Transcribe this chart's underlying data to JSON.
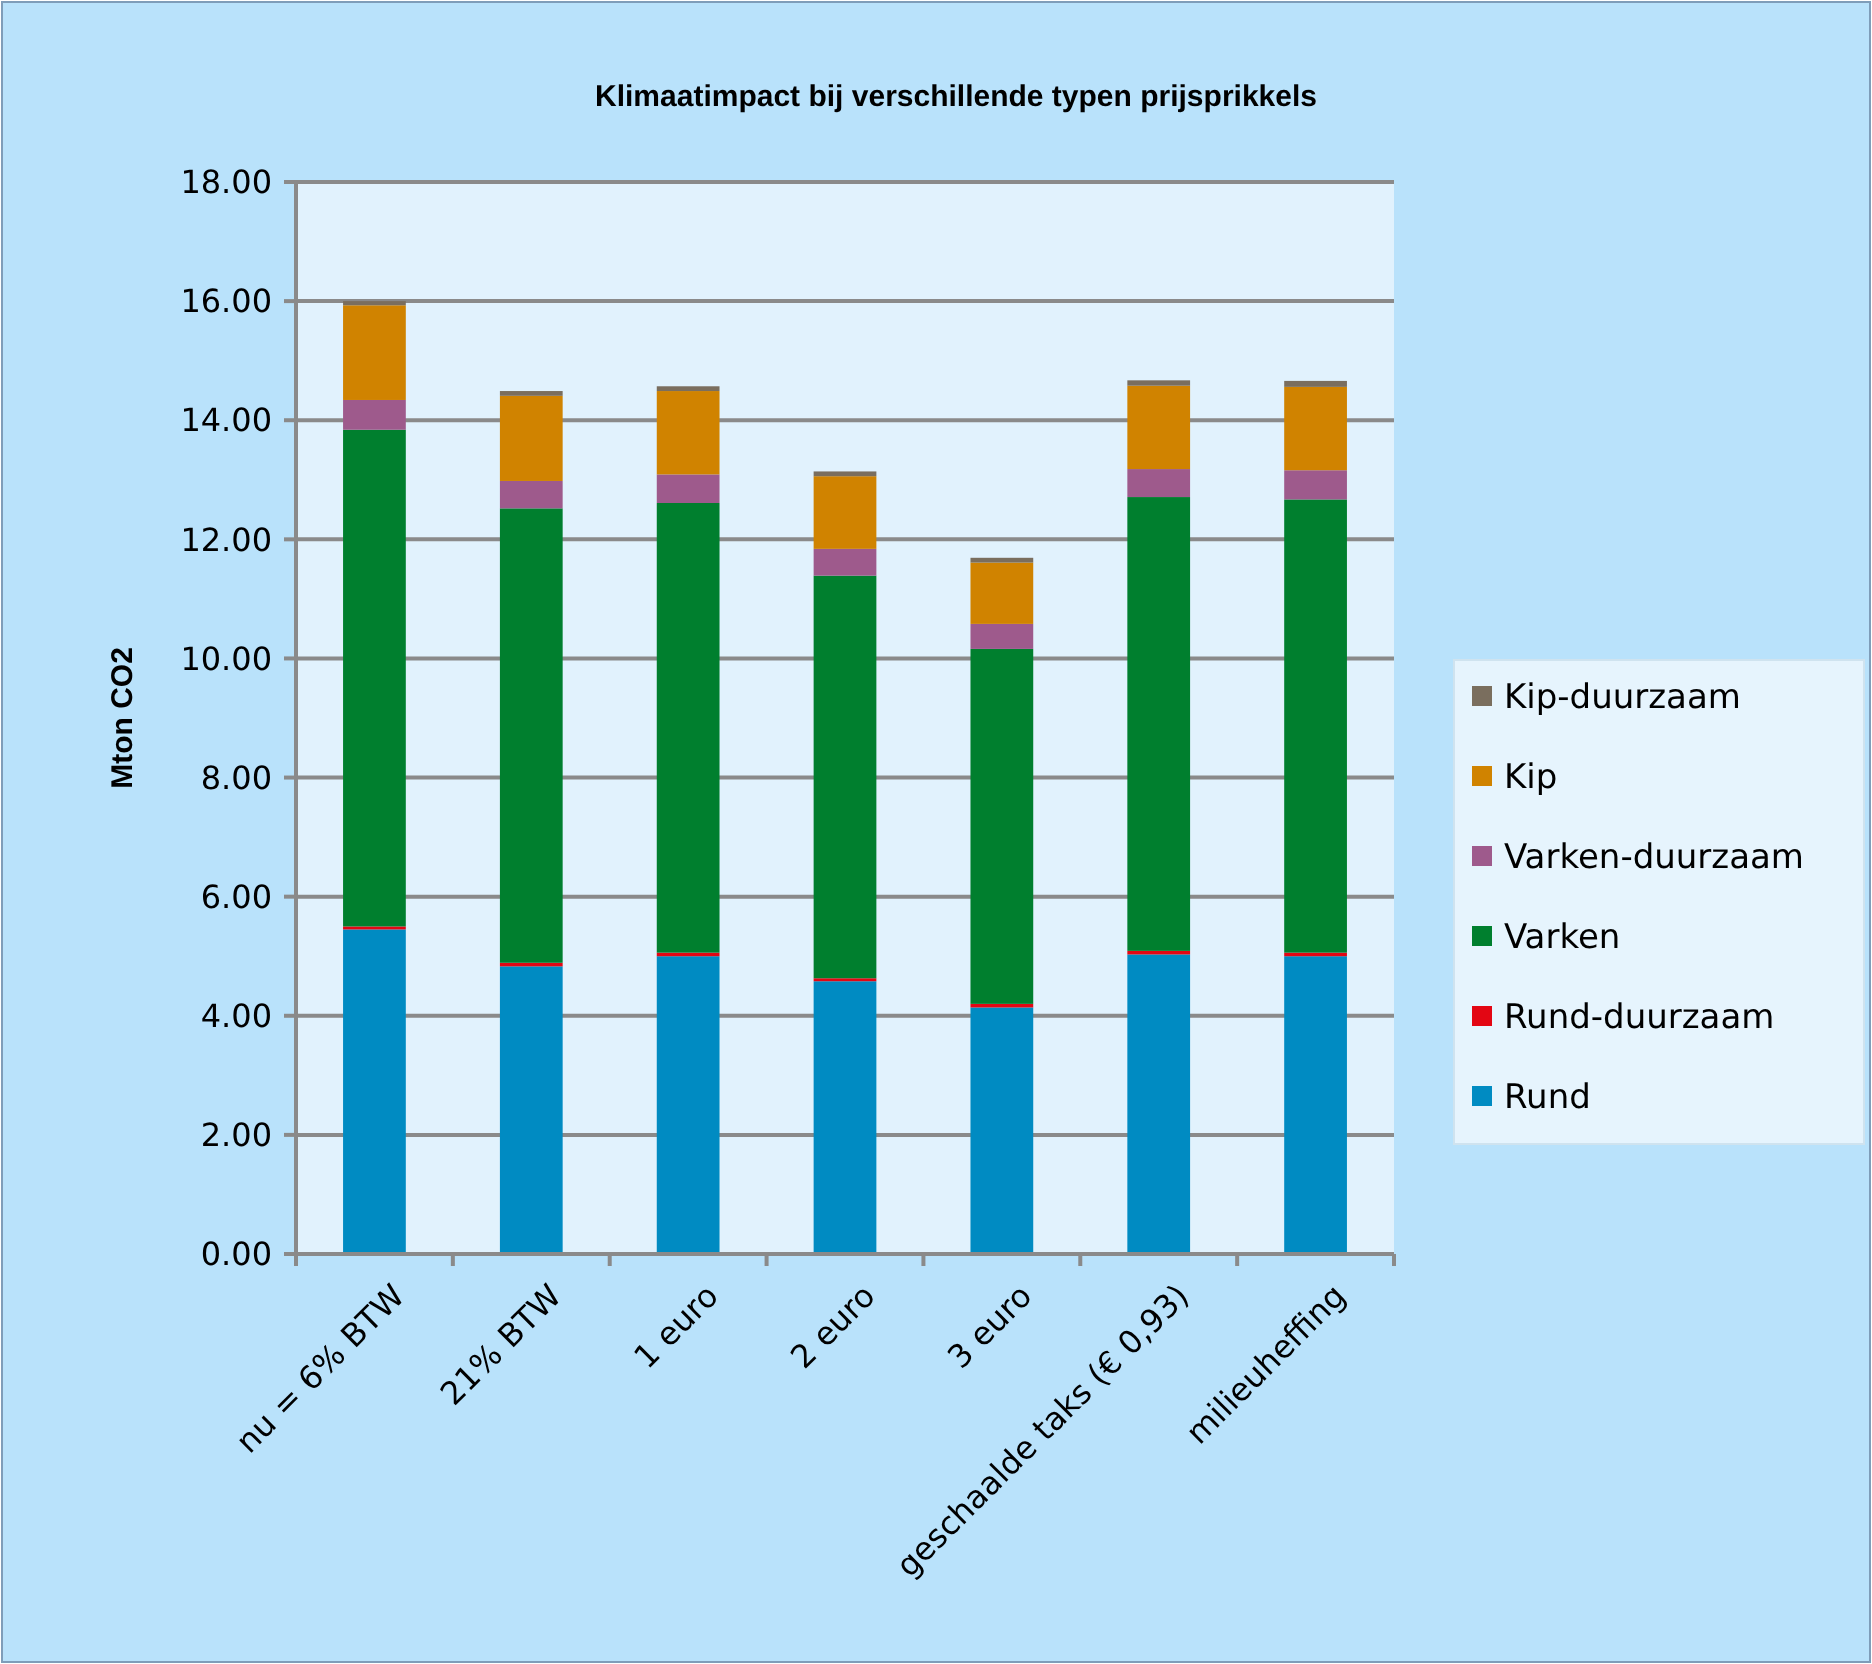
{
  "chart_data": {
    "type": "bar",
    "stacked": true,
    "title": "Klimaatimpact bij verschillende typen prijsprikkels",
    "ylabel": "Mton CO2",
    "categories": [
      "nu = 6% BTW",
      "21% BTW",
      "1 euro",
      "2 euro",
      "3 euro",
      "geschaalde taks (€ 0,93)",
      "milieuheffing"
    ],
    "series": [
      {
        "name": "Rund",
        "color": "#008bc2",
        "values": [
          5.45,
          4.83,
          5.0,
          4.58,
          4.14,
          5.03,
          5.0
        ]
      },
      {
        "name": "Rund-duurzaam",
        "color": "#e30613",
        "values": [
          0.05,
          0.06,
          0.06,
          0.05,
          0.06,
          0.06,
          0.06
        ]
      },
      {
        "name": "Varken",
        "color": "#007f2e",
        "values": [
          8.34,
          7.63,
          7.55,
          6.76,
          5.96,
          7.62,
          7.61
        ]
      },
      {
        "name": "Varken-duurzaam",
        "color": "#9e5a8c",
        "values": [
          0.5,
          0.46,
          0.48,
          0.45,
          0.42,
          0.47,
          0.49
        ]
      },
      {
        "name": "Kip",
        "color": "#d08300",
        "values": [
          1.59,
          1.43,
          1.4,
          1.22,
          1.03,
          1.4,
          1.4
        ]
      },
      {
        "name": "Kip-duurzaam",
        "color": "#7a6e5e",
        "values": [
          0.07,
          0.08,
          0.08,
          0.08,
          0.08,
          0.09,
          0.1
        ]
      }
    ],
    "ylim": [
      0,
      18
    ],
    "yticks": [
      {
        "value": 0,
        "label": "0.00"
      },
      {
        "value": 2,
        "label": "2.00"
      },
      {
        "value": 4,
        "label": "4.00"
      },
      {
        "value": 6,
        "label": "6.00"
      },
      {
        "value": 8,
        "label": "8.00"
      },
      {
        "value": 10,
        "label": "10.00"
      },
      {
        "value": 12,
        "label": "12.00"
      },
      {
        "value": 14,
        "label": "14.00"
      },
      {
        "value": 16,
        "label": "16.00"
      },
      {
        "value": 18,
        "label": "18.00"
      }
    ],
    "grid": "y",
    "legend": "right"
  }
}
